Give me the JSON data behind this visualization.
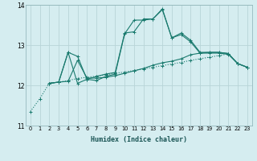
{
  "xlabel": "Humidex (Indice chaleur)",
  "xlim": [
    -0.5,
    23.5
  ],
  "ylim": [
    11,
    14
  ],
  "yticks": [
    11,
    12,
    13,
    14
  ],
  "xticks": [
    0,
    1,
    2,
    3,
    4,
    5,
    6,
    7,
    8,
    9,
    10,
    11,
    12,
    13,
    14,
    15,
    16,
    17,
    18,
    19,
    20,
    21,
    22,
    23
  ],
  "bg_color": "#d5edf0",
  "grid_color": "#b8d4d8",
  "line_color": "#1a7a6e",
  "seriesA_x": [
    0,
    1,
    2,
    3,
    4,
    5,
    6,
    7,
    8,
    9,
    10,
    11,
    12,
    13,
    14,
    15,
    16,
    17,
    18,
    19,
    20,
    21,
    22,
    23
  ],
  "seriesA_y": [
    11.35,
    11.67,
    12.05,
    12.08,
    12.12,
    12.17,
    12.2,
    12.23,
    12.26,
    12.3,
    12.33,
    12.37,
    12.41,
    12.45,
    12.49,
    12.53,
    12.57,
    12.62,
    12.66,
    12.7,
    12.74,
    12.78,
    12.54,
    12.45
  ],
  "seriesB_x": [
    2,
    3,
    4,
    5,
    6,
    7,
    8,
    9,
    10,
    11,
    12,
    13,
    14,
    15,
    16,
    17,
    18,
    19,
    20,
    21,
    22,
    23
  ],
  "seriesB_y": [
    12.05,
    12.08,
    12.82,
    12.72,
    12.15,
    12.22,
    12.28,
    12.32,
    13.3,
    13.33,
    13.65,
    13.65,
    13.9,
    13.18,
    13.3,
    13.12,
    12.82,
    12.82,
    12.82,
    12.79,
    12.54,
    12.45
  ],
  "seriesC_x": [
    2,
    3,
    4,
    5,
    6,
    7,
    8,
    9,
    10,
    11,
    12,
    13,
    14,
    15,
    16,
    17,
    18,
    19,
    20,
    21,
    22,
    23
  ],
  "seriesC_y": [
    12.05,
    12.08,
    12.82,
    12.05,
    12.15,
    12.12,
    12.22,
    12.28,
    13.28,
    13.62,
    13.62,
    13.65,
    13.88,
    13.18,
    13.26,
    13.08,
    12.8,
    12.8,
    12.8,
    12.77,
    12.54,
    12.45
  ],
  "seriesD_x": [
    2,
    3,
    4,
    5,
    6,
    7,
    8,
    9,
    10,
    11,
    12,
    13,
    14,
    15,
    16,
    17,
    18,
    19,
    20,
    21,
    22,
    23
  ],
  "seriesD_y": [
    12.05,
    12.08,
    12.1,
    12.62,
    12.18,
    12.18,
    12.2,
    12.24,
    12.3,
    12.36,
    12.42,
    12.5,
    12.56,
    12.6,
    12.66,
    12.76,
    12.8,
    12.82,
    12.82,
    12.79,
    12.54,
    12.45
  ]
}
